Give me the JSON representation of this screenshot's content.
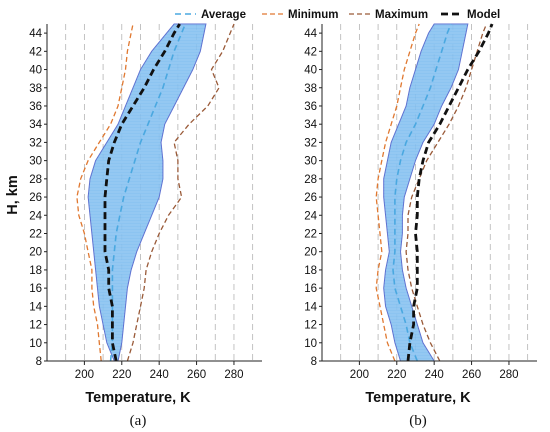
{
  "legend": [
    {
      "name": "Average",
      "color": "#4aa8e0",
      "dash": "6,4",
      "width": 1.6
    },
    {
      "name": "Minimum",
      "color": "#e07830",
      "dash": "5,3",
      "width": 1.3
    },
    {
      "name": "Maximum",
      "color": "#9a5a38",
      "dash": "5,3",
      "width": 1.3
    },
    {
      "name": "Model",
      "color": "#111111",
      "dash": "7,4",
      "width": 2.8
    }
  ],
  "band_color": "#7fbef0",
  "band_edge_color": "#5b6fd0",
  "min_alt_color": "#7a9a30",
  "chart_data": [
    {
      "type": "line",
      "caption": "(a)",
      "xlabel": "Temperature, K",
      "ylabel": "H, km",
      "xlim": [
        180,
        295
      ],
      "ylim": [
        8,
        45
      ],
      "xticks": [
        200,
        220,
        240,
        260,
        280
      ],
      "yticks": [
        8,
        10,
        12,
        14,
        16,
        18,
        20,
        22,
        24,
        26,
        28,
        30,
        32,
        34,
        36,
        38,
        40,
        42,
        44
      ],
      "grid": "vertical-dashed",
      "y": [
        8,
        10,
        12,
        14,
        16,
        18,
        20,
        22,
        24,
        26,
        28,
        30,
        32,
        34,
        36,
        38,
        40,
        42,
        44,
        45
      ],
      "band_low": [
        216,
        212,
        210,
        208,
        207,
        206,
        205,
        204,
        203,
        202,
        203,
        206,
        212,
        218,
        222,
        226,
        230,
        236,
        244,
        248
      ],
      "band_high": [
        218,
        220,
        221,
        222,
        223,
        225,
        228,
        232,
        236,
        240,
        242,
        242,
        241,
        243,
        248,
        253,
        258,
        262,
        264,
        265
      ],
      "series": [
        {
          "name": "Average",
          "values": [
            214,
            215,
            215,
            215,
            215,
            215,
            216,
            217,
            219,
            221,
            224,
            227,
            230,
            234,
            238,
            242,
            245,
            248,
            252,
            254
          ]
        },
        {
          "name": "Minimum",
          "values": [
            209,
            208,
            207,
            205,
            204,
            204,
            202,
            200,
            197,
            196,
            198,
            202,
            208,
            214,
            218,
            220,
            222,
            223,
            225,
            226
          ]
        },
        {
          "name": "Maximum",
          "values": [
            223,
            226,
            228,
            230,
            232,
            233,
            236,
            240,
            245,
            252,
            250,
            250,
            248,
            256,
            266,
            272,
            268,
            274,
            278,
            280
          ]
        },
        {
          "name": "Model",
          "values": [
            217,
            215,
            215,
            215,
            213,
            213,
            211,
            211,
            211,
            211,
            212,
            213,
            216,
            220,
            226,
            232,
            237,
            243,
            248,
            251
          ]
        }
      ]
    },
    {
      "type": "line",
      "caption": "(b)",
      "xlabel": "Temperature, K",
      "ylabel": "",
      "xlim": [
        180,
        295
      ],
      "ylim": [
        8,
        45
      ],
      "xticks": [
        200,
        220,
        240,
        260,
        280
      ],
      "yticks": [
        8,
        10,
        12,
        14,
        16,
        18,
        20,
        22,
        24,
        26,
        28,
        30,
        32,
        34,
        36,
        38,
        40,
        42,
        44
      ],
      "grid": "vertical-dashed",
      "y": [
        8,
        10,
        12,
        14,
        16,
        18,
        20,
        22,
        24,
        26,
        28,
        30,
        32,
        34,
        36,
        38,
        40,
        42,
        44,
        45
      ],
      "band_low": [
        222,
        219,
        217,
        214,
        213,
        214,
        216,
        215,
        214,
        213,
        213,
        215,
        217,
        221,
        225,
        227,
        230,
        233,
        237,
        240
      ],
      "band_high": [
        240,
        234,
        231,
        228,
        225,
        223,
        222,
        223,
        223,
        224,
        227,
        230,
        234,
        240,
        244,
        249,
        253,
        255,
        257,
        258
      ],
      "series": [
        {
          "name": "Average",
          "values": [
            231,
            227,
            225,
            222,
            219,
            218,
            219,
            219,
            219,
            219,
            220,
            222,
            225,
            230,
            234,
            238,
            241,
            244,
            247,
            249
          ]
        },
        {
          "name": "Minimum",
          "values": [
            219,
            215,
            213,
            211,
            209,
            210,
            212,
            211,
            210,
            209,
            210,
            212,
            214,
            217,
            220,
            222,
            224,
            227,
            230,
            232
          ]
        },
        {
          "name": "Maximum",
          "values": [
            243,
            238,
            234,
            231,
            228,
            226,
            225,
            226,
            226,
            228,
            232,
            236,
            242,
            248,
            253,
            257,
            260,
            263,
            266,
            268
          ]
        },
        {
          "name": "Model",
          "values": [
            226,
            227,
            229,
            229,
            231,
            231,
            231,
            230,
            231,
            231,
            232,
            234,
            237,
            243,
            248,
            253,
            258,
            264,
            269,
            271
          ]
        }
      ]
    }
  ]
}
